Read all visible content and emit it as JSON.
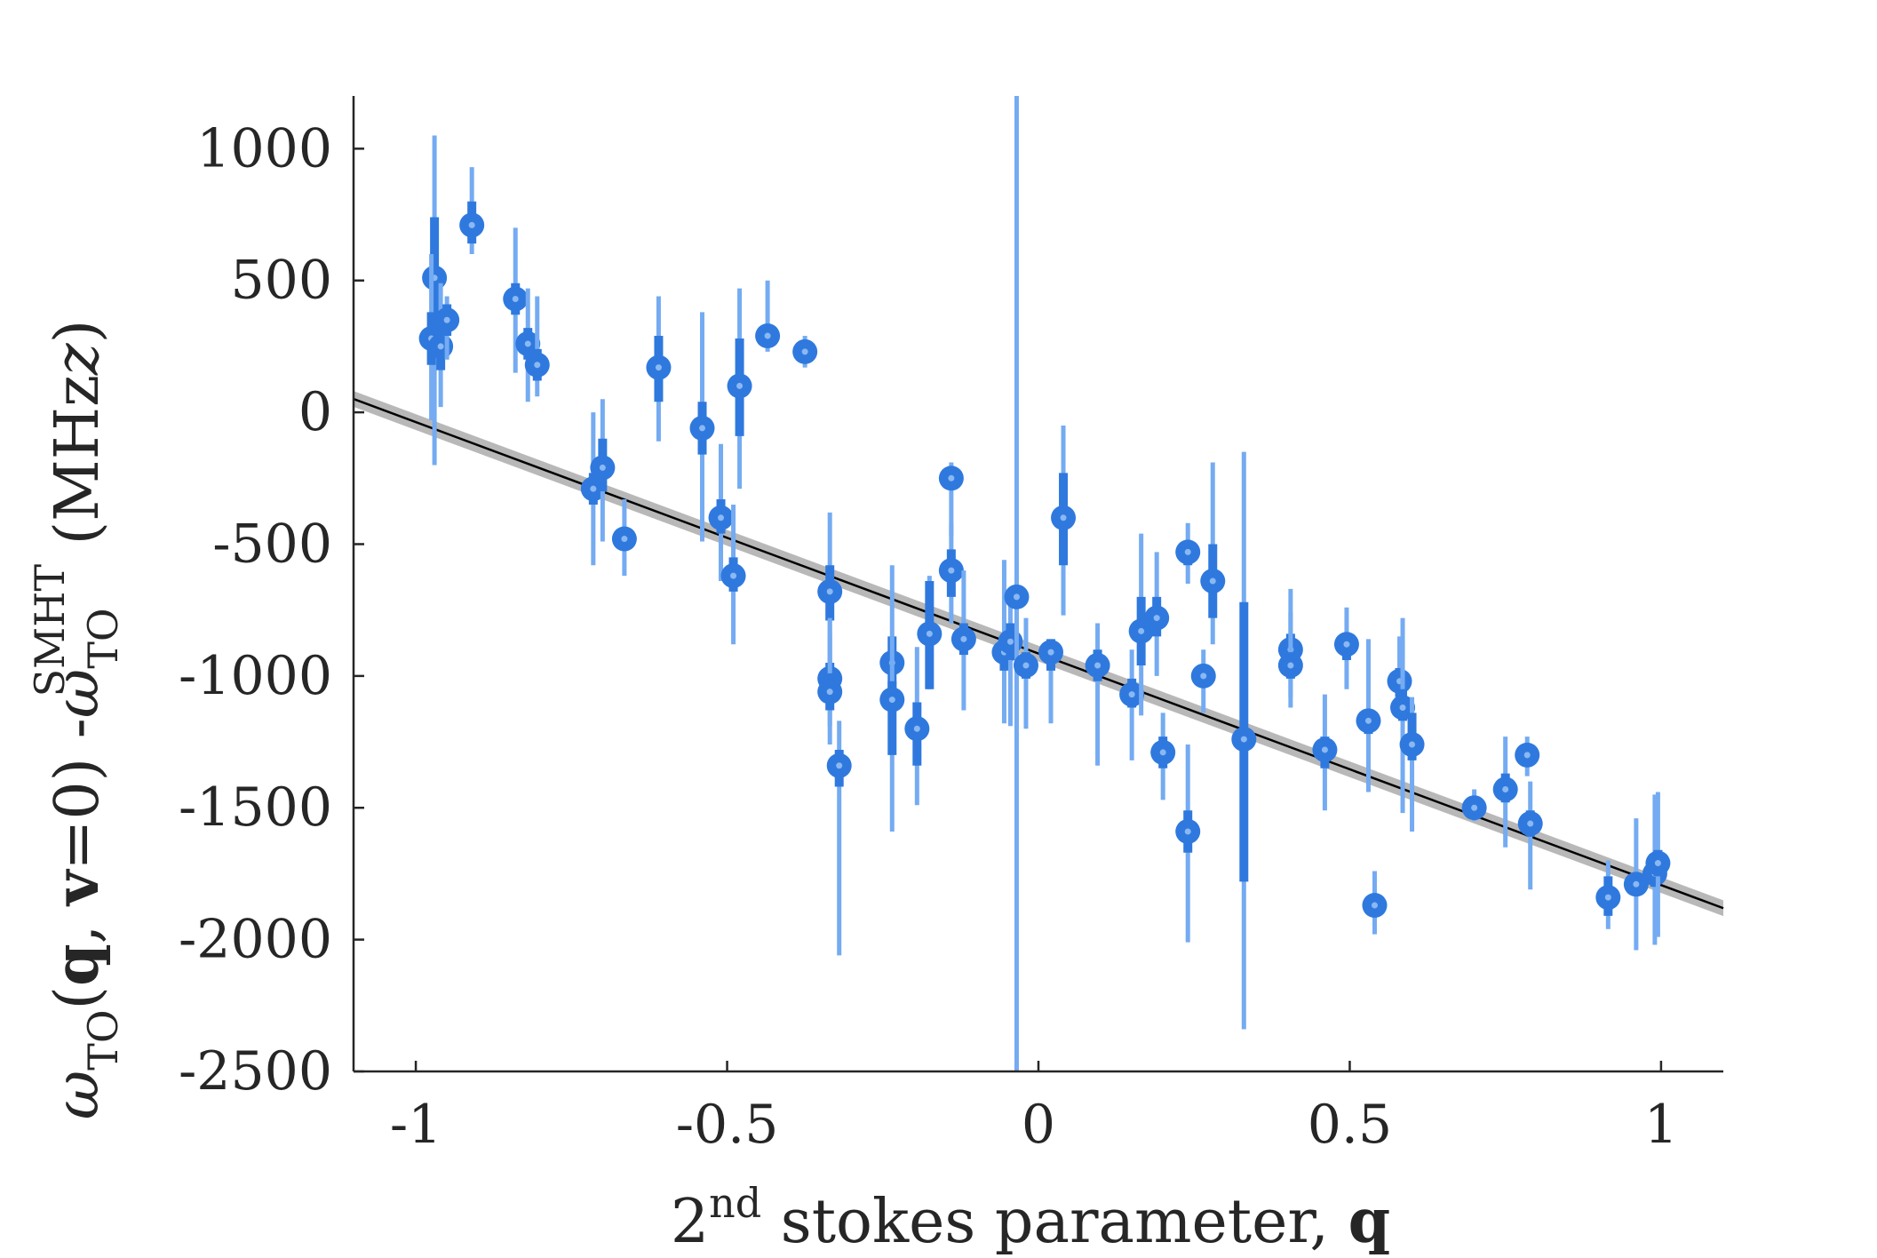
{
  "chart_data": {
    "type": "scatter",
    "title": "",
    "xlabel": {
      "prefix": "2",
      "sup": "nd",
      "text": " stokes parameter, ",
      "bold": "q"
    },
    "ylabel": {
      "omega1": "ω",
      "sub1": "TO",
      "paren_open": "(",
      "q": "q",
      "comma": ", ",
      "v": "v",
      "eq": "=0)",
      "minus": " -",
      "omega2": "ω",
      "sub2": "TO",
      "sup2": "SMHT",
      "unit_open": " (MHz",
      "unit_close": ")"
    },
    "xlim": [
      -1.1,
      1.1
    ],
    "ylim": [
      -2500,
      1200
    ],
    "xticks": [
      -1,
      -0.5,
      0,
      0.5,
      1
    ],
    "xtick_labels": [
      "-1",
      "-0.5",
      "0",
      "0.5",
      "1"
    ],
    "yticks": [
      1000,
      500,
      0,
      -500,
      -1000,
      -1500,
      -2000,
      -2500
    ],
    "ytick_labels": [
      "1000",
      "500",
      "0",
      "-500",
      "-1000",
      "-1500",
      "-2000",
      "-2500"
    ],
    "grid": false,
    "fit_line": {
      "intercept": -915,
      "slope": -878,
      "band": 30
    },
    "colors": {
      "marker": "#2f79de",
      "marker_center": "#8ab8f2",
      "errorbar_outer": "#74abf2",
      "errorbar_inner": "#2f79de",
      "fit": "#000000",
      "band": "#b8b8b8",
      "axis": "#262626"
    },
    "points": [
      {
        "x": -0.97,
        "y": 510,
        "lo": -200,
        "hi": 1050,
        "ilo": 300,
        "ihi": 740
      },
      {
        "x": -0.975,
        "y": 280,
        "lo": -30,
        "hi": 600,
        "ilo": 180,
        "ihi": 380
      },
      {
        "x": -0.96,
        "y": 250,
        "lo": 20,
        "hi": 490,
        "ilo": 160,
        "ihi": 340
      },
      {
        "x": -0.95,
        "y": 350,
        "lo": 200,
        "hi": 440,
        "ilo": 290,
        "ihi": 410
      },
      {
        "x": -0.91,
        "y": 710,
        "lo": 600,
        "hi": 930,
        "ilo": 640,
        "ihi": 800
      },
      {
        "x": -0.84,
        "y": 430,
        "lo": 150,
        "hi": 700,
        "ilo": 370,
        "ihi": 490
      },
      {
        "x": -0.82,
        "y": 260,
        "lo": 40,
        "hi": 470,
        "ilo": 200,
        "ihi": 320
      },
      {
        "x": -0.805,
        "y": 180,
        "lo": 60,
        "hi": 440,
        "ilo": 120,
        "ihi": 240
      },
      {
        "x": -0.715,
        "y": -290,
        "lo": -580,
        "hi": 0,
        "ilo": -350,
        "ihi": -230
      },
      {
        "x": -0.7,
        "y": -210,
        "lo": -490,
        "hi": 50,
        "ilo": -300,
        "ihi": -100
      },
      {
        "x": -0.665,
        "y": -480,
        "lo": -620,
        "hi": -330,
        "ilo": -520,
        "ihi": -440
      },
      {
        "x": -0.61,
        "y": 170,
        "lo": -110,
        "hi": 440,
        "ilo": 40,
        "ihi": 290
      },
      {
        "x": -0.54,
        "y": -60,
        "lo": -490,
        "hi": 380,
        "ilo": -160,
        "ihi": 40
      },
      {
        "x": -0.51,
        "y": -400,
        "lo": -640,
        "hi": -120,
        "ilo": -460,
        "ihi": -330
      },
      {
        "x": -0.49,
        "y": -620,
        "lo": -880,
        "hi": -350,
        "ilo": -680,
        "ihi": -550
      },
      {
        "x": -0.48,
        "y": 100,
        "lo": -290,
        "hi": 470,
        "ilo": -90,
        "ihi": 280
      },
      {
        "x": -0.435,
        "y": 290,
        "lo": 230,
        "hi": 500,
        "ilo": 260,
        "ihi": 330
      },
      {
        "x": -0.375,
        "y": 230,
        "lo": 170,
        "hi": 290,
        "ilo": 200,
        "ihi": 260
      },
      {
        "x": -0.335,
        "y": -680,
        "lo": -960,
        "hi": -380,
        "ilo": -790,
        "ihi": -580
      },
      {
        "x": -0.335,
        "y": -1010,
        "lo": -1190,
        "hi": -840,
        "ilo": -1080,
        "ihi": -950
      },
      {
        "x": -0.335,
        "y": -1060,
        "lo": -1260,
        "hi": -780,
        "ilo": -1130,
        "ihi": -990
      },
      {
        "x": -0.32,
        "y": -1340,
        "lo": -2060,
        "hi": -1170,
        "ilo": -1420,
        "ihi": -1280
      },
      {
        "x": -0.235,
        "y": -950,
        "lo": -1220,
        "hi": -580,
        "ilo": -1050,
        "ihi": -850
      },
      {
        "x": -0.235,
        "y": -1090,
        "lo": -1590,
        "hi": -850,
        "ilo": -1300,
        "ihi": -1020
      },
      {
        "x": -0.195,
        "y": -1200,
        "lo": -1490,
        "hi": -890,
        "ilo": -1340,
        "ihi": -1100
      },
      {
        "x": -0.175,
        "y": -840,
        "lo": -1050,
        "hi": -620,
        "ilo": -1050,
        "ihi": -640
      },
      {
        "x": -0.14,
        "y": -250,
        "lo": -470,
        "hi": -190,
        "ilo": -290,
        "ihi": -220
      },
      {
        "x": -0.14,
        "y": -600,
        "lo": -800,
        "hi": -420,
        "ilo": -700,
        "ihi": -520
      },
      {
        "x": -0.12,
        "y": -860,
        "lo": -1130,
        "hi": -600,
        "ilo": -920,
        "ihi": -800
      },
      {
        "x": -0.055,
        "y": -910,
        "lo": -1180,
        "hi": -560,
        "ilo": -980,
        "ihi": -850
      },
      {
        "x": -0.045,
        "y": -870,
        "lo": -1190,
        "hi": -700,
        "ilo": -940,
        "ihi": -800
      },
      {
        "x": -0.035,
        "y": -700,
        "lo": -2500,
        "hi": 1200,
        "ilo": -740,
        "ihi": -660
      },
      {
        "x": -0.02,
        "y": -960,
        "lo": -1200,
        "hi": -780,
        "ilo": -1010,
        "ihi": -910
      },
      {
        "x": 0.02,
        "y": -910,
        "lo": -1180,
        "hi": -860,
        "ilo": -980,
        "ihi": -860
      },
      {
        "x": 0.04,
        "y": -400,
        "lo": -770,
        "hi": -50,
        "ilo": -580,
        "ihi": -230
      },
      {
        "x": 0.095,
        "y": -960,
        "lo": -1340,
        "hi": -800,
        "ilo": -1020,
        "ihi": -900
      },
      {
        "x": 0.15,
        "y": -1070,
        "lo": -1320,
        "hi": -900,
        "ilo": -1120,
        "ihi": -1010
      },
      {
        "x": 0.165,
        "y": -830,
        "lo": -1150,
        "hi": -460,
        "ilo": -960,
        "ihi": -700
      },
      {
        "x": 0.19,
        "y": -780,
        "lo": -1000,
        "hi": -530,
        "ilo": -850,
        "ihi": -700
      },
      {
        "x": 0.2,
        "y": -1290,
        "lo": -1470,
        "hi": -1140,
        "ilo": -1350,
        "ihi": -1230
      },
      {
        "x": 0.24,
        "y": -530,
        "lo": -650,
        "hi": -420,
        "ilo": -580,
        "ihi": -490
      },
      {
        "x": 0.24,
        "y": -1590,
        "lo": -2010,
        "hi": -1260,
        "ilo": -1670,
        "ihi": -1510
      },
      {
        "x": 0.265,
        "y": -1000,
        "lo": -1140,
        "hi": -900,
        "ilo": -1040,
        "ihi": -960
      },
      {
        "x": 0.28,
        "y": -640,
        "lo": -880,
        "hi": -190,
        "ilo": -780,
        "ihi": -500
      },
      {
        "x": 0.33,
        "y": -1240,
        "lo": -2340,
        "hi": -150,
        "ilo": -1780,
        "ihi": -720
      },
      {
        "x": 0.405,
        "y": -900,
        "lo": -1080,
        "hi": -670,
        "ilo": -980,
        "ihi": -840
      },
      {
        "x": 0.405,
        "y": -960,
        "lo": -1120,
        "hi": -760,
        "ilo": -1010,
        "ihi": -910
      },
      {
        "x": 0.46,
        "y": -1280,
        "lo": -1510,
        "hi": -1070,
        "ilo": -1350,
        "ihi": -1230
      },
      {
        "x": 0.495,
        "y": -880,
        "lo": -1050,
        "hi": -740,
        "ilo": -940,
        "ihi": -840
      },
      {
        "x": 0.53,
        "y": -1170,
        "lo": -1440,
        "hi": -860,
        "ilo": -1220,
        "ihi": -1130
      },
      {
        "x": 0.54,
        "y": -1870,
        "lo": -1980,
        "hi": -1740,
        "ilo": -1910,
        "ihi": -1830
      },
      {
        "x": 0.58,
        "y": -1020,
        "lo": -1130,
        "hi": -850,
        "ilo": -1080,
        "ihi": -970
      },
      {
        "x": 0.585,
        "y": -1120,
        "lo": -1520,
        "hi": -780,
        "ilo": -1170,
        "ihi": -1050
      },
      {
        "x": 0.6,
        "y": -1260,
        "lo": -1590,
        "hi": -1080,
        "ilo": -1320,
        "ihi": -1140
      },
      {
        "x": 0.7,
        "y": -1500,
        "lo": -1550,
        "hi": -1430,
        "ilo": -1530,
        "ihi": -1470
      },
      {
        "x": 0.75,
        "y": -1430,
        "lo": -1650,
        "hi": -1230,
        "ilo": -1480,
        "ihi": -1370
      },
      {
        "x": 0.785,
        "y": -1300,
        "lo": -1380,
        "hi": -1230,
        "ilo": -1340,
        "ihi": -1260
      },
      {
        "x": 0.79,
        "y": -1560,
        "lo": -1810,
        "hi": -1400,
        "ilo": -1610,
        "ihi": -1510
      },
      {
        "x": 0.915,
        "y": -1840,
        "lo": -1960,
        "hi": -1700,
        "ilo": -1910,
        "ihi": -1760
      },
      {
        "x": 0.96,
        "y": -1790,
        "lo": -2040,
        "hi": -1540,
        "ilo": -1830,
        "ihi": -1750
      },
      {
        "x": 0.99,
        "y": -1750,
        "lo": -2020,
        "hi": -1450,
        "ilo": -1800,
        "ihi": -1700
      },
      {
        "x": 0.995,
        "y": -1710,
        "lo": -1990,
        "hi": -1440,
        "ilo": -1760,
        "ihi": -1660
      }
    ]
  }
}
